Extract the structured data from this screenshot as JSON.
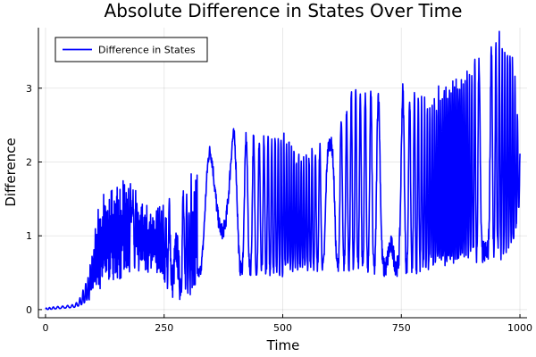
{
  "chart_data": {
    "type": "line",
    "title": "Absolute Difference in States Over Time",
    "xlabel": "Time",
    "ylabel": "Difference",
    "xlim": [
      -15,
      1015
    ],
    "ylim": [
      -0.11,
      3.82
    ],
    "xticks": [
      0,
      250,
      500,
      750,
      1000
    ],
    "yticks": [
      0,
      1,
      2,
      3
    ],
    "grid": true,
    "legend": {
      "position": "top-left"
    },
    "series": [
      {
        "name": "Difference in States",
        "color": "#0000ff",
        "envelope": [
          [
            0,
            0.0,
            0.02
          ],
          [
            20,
            0.01,
            0.04
          ],
          [
            40,
            0.02,
            0.05
          ],
          [
            60,
            0.03,
            0.07
          ],
          [
            70,
            0.05,
            0.12
          ],
          [
            80,
            0.08,
            0.28
          ],
          [
            90,
            0.15,
            0.45
          ],
          [
            100,
            0.3,
            0.75
          ],
          [
            110,
            0.4,
            1.2
          ],
          [
            125,
            0.55,
            1.45
          ],
          [
            150,
            0.6,
            1.5
          ],
          [
            175,
            0.65,
            1.55
          ],
          [
            200,
            0.7,
            1.5
          ],
          [
            225,
            0.6,
            1.2
          ],
          [
            250,
            0.5,
            1.35
          ],
          [
            275,
            0.35,
            1.45
          ],
          [
            300,
            0.45,
            1.55
          ],
          [
            325,
            0.5,
            1.75
          ],
          [
            360,
            0.55,
            2.4
          ],
          [
            400,
            0.55,
            2.35
          ],
          [
            450,
            0.55,
            2.3
          ],
          [
            500,
            0.55,
            2.4
          ],
          [
            540,
            0.6,
            2.0
          ],
          [
            575,
            0.6,
            2.2
          ],
          [
            610,
            0.6,
            2.3
          ],
          [
            650,
            0.65,
            3.0
          ],
          [
            700,
            0.55,
            2.9
          ],
          [
            750,
            0.6,
            2.95
          ],
          [
            800,
            0.6,
            2.8
          ],
          [
            850,
            0.7,
            3.0
          ],
          [
            900,
            0.75,
            3.3
          ],
          [
            950,
            0.8,
            3.65
          ],
          [
            985,
            0.85,
            3.55
          ],
          [
            1000,
            1.5,
            2.2
          ]
        ]
      }
    ]
  }
}
